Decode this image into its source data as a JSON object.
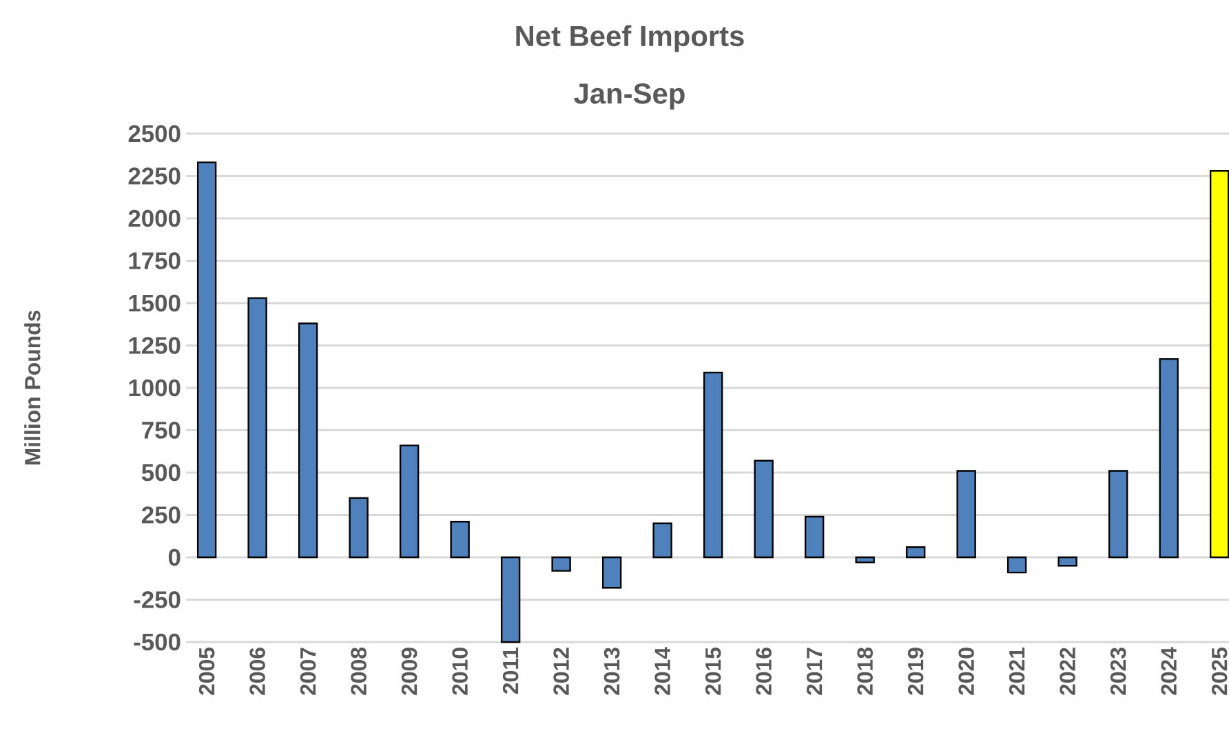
{
  "chart_data": {
    "type": "bar",
    "title": "Net Beef Imports",
    "subtitle": "Jan-Sep",
    "ylabel": "Million Pounds",
    "categories": [
      "2005",
      "2006",
      "2007",
      "2008",
      "2009",
      "2010",
      "2011",
      "2012",
      "2013",
      "2014",
      "2015",
      "2016",
      "2017",
      "2018",
      "2019",
      "2020",
      "2021",
      "2022",
      "2023",
      "2024",
      "2025"
    ],
    "values": [
      2330,
      1530,
      1380,
      350,
      660,
      210,
      -500,
      -80,
      -180,
      200,
      1090,
      570,
      240,
      -30,
      60,
      510,
      -90,
      -50,
      510,
      1170,
      2280
    ],
    "colors": [
      "#4f81bd",
      "#4f81bd",
      "#4f81bd",
      "#4f81bd",
      "#4f81bd",
      "#4f81bd",
      "#4f81bd",
      "#4f81bd",
      "#4f81bd",
      "#4f81bd",
      "#4f81bd",
      "#4f81bd",
      "#4f81bd",
      "#4f81bd",
      "#4f81bd",
      "#4f81bd",
      "#4f81bd",
      "#4f81bd",
      "#4f81bd",
      "#4f81bd",
      "#ffff00"
    ],
    "ylim": [
      -500,
      2500
    ],
    "yticks": [
      -500,
      -250,
      0,
      250,
      500,
      750,
      1000,
      1250,
      1500,
      1750,
      2000,
      2250,
      2500
    ],
    "grid": "y"
  }
}
